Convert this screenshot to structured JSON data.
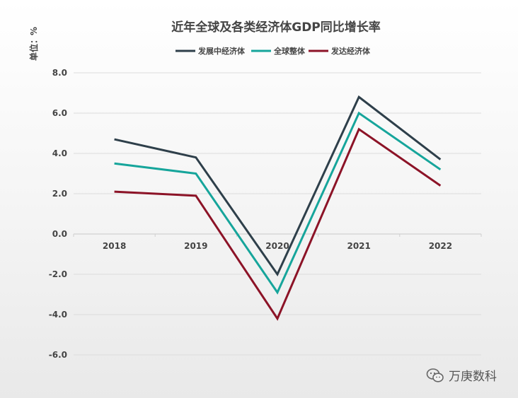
{
  "chart_data": {
    "type": "line",
    "title": "近年全球及各类经济体GDP同比增长率",
    "ylabel": "单位：%",
    "xlabel": "",
    "categories": [
      "2018",
      "2019",
      "2020",
      "2021",
      "2022"
    ],
    "ylim": [
      -6.0,
      8.0
    ],
    "yticks": [
      "8.0",
      "6.0",
      "4.0",
      "2.0",
      "0.0",
      "-2.0",
      "-4.0",
      "-6.0"
    ],
    "legend_position": "top-center",
    "grid": true,
    "series": [
      {
        "name": "发展中经济体",
        "color": "#2e3f4a",
        "values": [
          4.7,
          3.8,
          -2.0,
          6.8,
          3.7
        ]
      },
      {
        "name": "全球整体",
        "color": "#16a59b",
        "values": [
          3.5,
          3.0,
          -2.9,
          6.0,
          3.2
        ]
      },
      {
        "name": "发达经济体",
        "color": "#8c1327",
        "values": [
          2.1,
          1.9,
          -4.2,
          5.2,
          2.4
        ]
      }
    ]
  },
  "watermark": {
    "text": "万庚数科",
    "icon": "wechat-icon"
  }
}
